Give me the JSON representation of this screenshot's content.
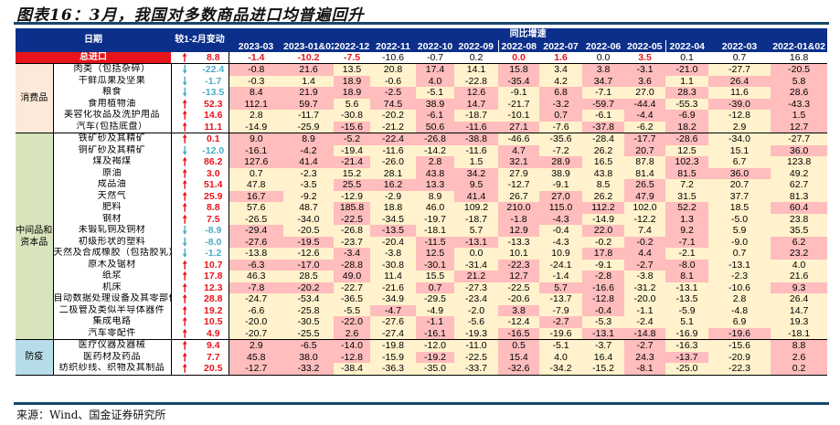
{
  "title": "图表16：3月，我国对多数商品进口均普遍回升",
  "source": "来源：Wind、国金证券研究所",
  "colors": {
    "header_bg": "#0b2f8a",
    "up": "#e8141b",
    "down": "#4bacc6",
    "pink": "#ffbdbd",
    "cream": "#fff2cc",
    "consumer": "#fde9d9",
    "intermediate": "#d8e4bc",
    "epidemic": "#b7dee8"
  },
  "chart_data": {
    "type": "table",
    "title": "图表16：3月，我国对多数商品进口均普遍回升",
    "header": {
      "date_label": "日期",
      "change_label": "较1-2月变动",
      "group_label": "同比增速"
    },
    "columns": [
      "2023-03",
      "2023-01&02",
      "2022-12",
      "2022-11",
      "2022-10",
      "2022-09",
      "2022-08",
      "2022-07",
      "2022-06",
      "2022-05",
      "2022-04",
      "2022-03",
      "2022-01&02"
    ],
    "total": {
      "label": "总进口",
      "change": "8.8",
      "direction": "up",
      "values": [
        "-1.4",
        "-10.2",
        "-7.5",
        "-10.6",
        "-0.7",
        "0.2",
        "0.0",
        "1.6",
        "0.0",
        "3.5",
        "0.1",
        "0.7",
        "16.8"
      ],
      "red": [
        1,
        1,
        1,
        0,
        0,
        0,
        1,
        1,
        0,
        1,
        0,
        0,
        0
      ]
    },
    "groups": [
      {
        "label": "消费品",
        "color": "#fde9d9",
        "rows": [
          {
            "name": "肉类（包括杂碎）",
            "dir": "down",
            "change": "-22.4",
            "values": [
              "-0.8",
              "21.6",
              "13.5",
              "20.8",
              "17.4",
              "14.1",
              "15.8",
              "3.4",
              "3.8",
              "-3.1",
              "-21.0",
              "-27.7",
              "-20.5"
            ],
            "hl": "ppccpcpcpppcp"
          },
          {
            "name": "干鲜瓜果及坚果",
            "dir": "down",
            "change": "-1.7",
            "values": [
              "-0.3",
              "1.4",
              "18.9",
              "-0.6",
              "4.0",
              "-22.8",
              "-35.4",
              "4.2",
              "34.7",
              "3.6",
              "1.1",
              "26.4",
              "5.8"
            ],
            "hl": "ccpcpcpcppcpp"
          },
          {
            "name": "粮食",
            "dir": "down",
            "change": "-13.5",
            "values": [
              "8.4",
              "21.9",
              "18.9",
              "-2.5",
              "-5.1",
              "12.6",
              "-9.1",
              "6.8",
              "-7.1",
              "27.0",
              "28.3",
              "11.6",
              "28.6"
            ],
            "hl": "ppppcpcpccpcp"
          },
          {
            "name": "食用植物油",
            "dir": "up",
            "change": "52.3",
            "values": [
              "112.1",
              "59.7",
              "5.6",
              "74.5",
              "38.9",
              "14.7",
              "-21.7",
              "-3.2",
              "-59.7",
              "-44.4",
              "-55.3",
              "-39.0",
              "-43.3"
            ],
            "hl": "ppcpppcpppcpp"
          },
          {
            "name": "美容化妆品及洗护用品",
            "dir": "up",
            "change": "14.6",
            "values": [
              "2.8",
              "-11.7",
              "-30.8",
              "-20.2",
              "-6.1",
              "-18.7",
              "-10.1",
              "0.7",
              "-6.1",
              "-4.4",
              "-6.9",
              "-12.8",
              "1.5"
            ],
            "hl": "ccccpccpcppcp"
          },
          {
            "name": "汽车(包括底盘）",
            "dir": "up",
            "change": "11.1",
            "values": [
              "-14.9",
              "-25.9",
              "-15.6",
              "-21.2",
              "50.6",
              "-11.6",
              "27.1",
              "-7.6",
              "-37.8",
              "-6.2",
              "18.2",
              "2.9",
              "12.7"
            ],
            "hl": "ccpcpppcpcpcp"
          }
        ]
      },
      {
        "label": "中间品和资本品",
        "color": "#d8e4bc",
        "rows": [
          {
            "name": "铁矿砂及其精矿",
            "dir": "up",
            "change": "0.1",
            "values": [
              "9.0",
              "8.9",
              "-5.2",
              "-22.4",
              "-26.8",
              "-38.8",
              "-46.6",
              "-35.6",
              "-28.4",
              "-17.7",
              "-28.6",
              "-34.0",
              "-27.7"
            ],
            "hl": "ppppppcccppcc"
          },
          {
            "name": "铜矿砂及其精矿",
            "dir": "down",
            "change": "-12.0",
            "values": [
              "-16.1",
              "-4.2",
              "-19.4",
              "-11.6",
              "-14.2",
              "-11.6",
              "4.7",
              "-7.2",
              "26.2",
              "20.7",
              "12.5",
              "15.1",
              "36.0"
            ],
            "hl": "ppccccpccpccp"
          },
          {
            "name": "煤及褐煤",
            "dir": "up",
            "change": "86.2",
            "values": [
              "127.6",
              "41.4",
              "-21.4",
              "-26.0",
              "2.8",
              "1.5",
              "32.1",
              "28.9",
              "16.5",
              "87.8",
              "102.3",
              "6.7",
              "123.8"
            ],
            "hl": "pppcpcppccpcc"
          },
          {
            "name": "原油",
            "dir": "up",
            "change": "3.0",
            "values": [
              "0.7",
              "-2.3",
              "15.2",
              "28.1",
              "43.8",
              "34.2",
              "27.9",
              "38.9",
              "43.8",
              "81.4",
              "81.5",
              "36.0",
              "49.2"
            ],
            "hl": "ccccppccccppc"
          },
          {
            "name": "成品油",
            "dir": "up",
            "change": "51.4",
            "values": [
              "47.8",
              "-3.5",
              "25.5",
              "16.2",
              "13.3",
              "9.5",
              "-12.7",
              "-9.1",
              "8.5",
              "26.5",
              "7.2",
              "20.7",
              "62.7"
            ],
            "hl": "ccppppcccpccc"
          },
          {
            "name": "天然气",
            "dir": "up",
            "change": "25.9",
            "values": [
              "16.7",
              "-9.2",
              "-12.9",
              "-2.9",
              "8.9",
              "41.4",
              "26.7",
              "27.0",
              "26.2",
              "47.9",
              "31.5",
              "37.7",
              "81.3"
            ],
            "hl": "pccccpcpcpccc"
          },
          {
            "name": "肥料",
            "dir": "up",
            "change": "8.8",
            "values": [
              "57.6",
              "48.7",
              "185.8",
              "18.8",
              "46.0",
              "109.2",
              "210.0",
              "115.0",
              "112.2",
              "102.0",
              "52.2",
              "18.5",
              "60.4"
            ],
            "hl": "ccpcccpppcpcp"
          },
          {
            "name": "钢材",
            "dir": "up",
            "change": "7.5",
            "values": [
              "-26.5",
              "-34.0",
              "-22.5",
              "-34.5",
              "-19.7",
              "-18.7",
              "-1.8",
              "-4.3",
              "-14.9",
              "-12.2",
              "1.3",
              "-5.0",
              "23.8"
            ],
            "hl": "ccpcccppccpcc"
          },
          {
            "name": "未锻轧铜及铜材",
            "dir": "down",
            "change": "-8.9",
            "values": [
              "-29.4",
              "-20.5",
              "-26.8",
              "-13.5",
              "-18.1",
              "5.7",
              "12.9",
              "-0.4",
              "22.0",
              "7.4",
              "9.2",
              "5.9",
              "35.5"
            ],
            "hl": "pccpccpcpcpcc"
          },
          {
            "name": "初级形状的塑料",
            "dir": "down",
            "change": "-8.0",
            "values": [
              "-27.6",
              "-19.5",
              "-23.7",
              "-20.4",
              "-11.5",
              "-13.1",
              "-13.3",
              "-4.3",
              "-0.2",
              "-0.2",
              "-7.1",
              "-9.0",
              "6.2"
            ],
            "hl": "ppccppcccppcp"
          },
          {
            "name": "天然及合成橡胶（包括胶乳）",
            "dir": "down",
            "change": "-1.2",
            "values": [
              "-13.8",
              "-12.6",
              "-3.4",
              "-3.8",
              "12.5",
              "0.0",
              "10.1",
              "10.9",
              "17.8",
              "4.4",
              "-2.1",
              "0.7",
              "23.2"
            ],
            "hl": "ccpcpcccppccp"
          },
          {
            "name": "原木及锯材",
            "dir": "up",
            "change": "10.7",
            "values": [
              "-6.3",
              "-17.0",
              "-28.8",
              "-30.8",
              "-30.1",
              "-31.4",
              "-22.3",
              "-24.1",
              "-9.1",
              "-2.7",
              "-8.0",
              "-13.1",
              "4.0"
            ],
            "hl": "pppcpcpccppcc"
          },
          {
            "name": "纸浆",
            "dir": "up",
            "change": "17.8",
            "values": [
              "46.3",
              "28.5",
              "49.0",
              "11.4",
              "15.5",
              "21.2",
              "12.7",
              "-1.4",
              "-2.8",
              "-3.8",
              "8.1",
              "-2.3",
              "21.6"
            ],
            "hl": "ccpccppcpcpcc"
          },
          {
            "name": "机床",
            "dir": "up",
            "change": "12.3",
            "values": [
              "-7.8",
              "-20.2",
              "-22.7",
              "-21.6",
              "0.7",
              "-27.3",
              "-22.5",
              "5.7",
              "-16.6",
              "-31.2",
              "-13.1",
              "-10.6",
              "9.3"
            ],
            "hl": "ppccpccppcccp"
          },
          {
            "name": "自动数据处理设备及其零部件",
            "dir": "up",
            "change": "28.8",
            "values": [
              "-24.7",
              "-53.4",
              "-36.5",
              "-34.9",
              "-29.5",
              "-23.4",
              "-20.6",
              "-13.7",
              "-12.8",
              "-20.0",
              "-13.5",
              "2.8",
              "26.4"
            ],
            "hl": "ccccccccpcccc"
          },
          {
            "name": "二极管及类似半导体器件",
            "dir": "up",
            "change": "19.2",
            "values": [
              "-6.6",
              "-25.8",
              "-5.5",
              "-4.7",
              "-4.9",
              "-2.0",
              "3.8",
              "-7.9",
              "-0.4",
              "-1.1",
              "-5.9",
              "-4.8",
              "14.7"
            ],
            "hl": "cccpccpcpcccc"
          },
          {
            "name": "集成电路",
            "dir": "up",
            "change": "10.5",
            "values": [
              "-20.0",
              "-30.5",
              "-22.0",
              "-27.6",
              "-1.1",
              "-5.6",
              "-12.4",
              "-2.7",
              "-5.3",
              "-2.4",
              "5.1",
              "6.9",
              "19.3"
            ],
            "hl": "ccpcpccpccccc"
          },
          {
            "name": "汽车零配件",
            "dir": "up",
            "change": "4.9",
            "values": [
              "-20.7",
              "-25.5",
              "2.6",
              "-27.4",
              "-16.1",
              "-19.3",
              "-16.5",
              "-19.6",
              "-13.1",
              "-14.8",
              "-16.9",
              "-19.6",
              "-18.1"
            ],
            "hl": "ccpcpcpcppcpc"
          }
        ]
      },
      {
        "label": "防疫",
        "color": "#b7dee8",
        "rows": [
          {
            "name": "医疗仪器及器械",
            "dir": "up",
            "change": "9.4",
            "values": [
              "2.9",
              "-6.5",
              "-14.0",
              "-19.8",
              "-12.0",
              "-11.0",
              "0.5",
              "-5.1",
              "-3.7",
              "-2.7",
              "-16.3",
              "-15.6",
              "8.8"
            ],
            "hl": "pppcccpccpccp"
          },
          {
            "name": "医药材及药品",
            "dir": "up",
            "change": "7.7",
            "values": [
              "45.8",
              "38.0",
              "-12.8",
              "-15.9",
              "-19.2",
              "-22.5",
              "15.4",
              "4.0",
              "16.4",
              "24.3",
              "-13.7",
              "-20.9",
              "2.6"
            ],
            "hl": "pppcpcpccppcp"
          },
          {
            "name": "纺织纱线、织物及其制品",
            "dir": "up",
            "change": "20.5",
            "values": [
              "-12.7",
              "-33.2",
              "-38.4",
              "-36.3",
              "-35.0",
              "-33.7",
              "-32.6",
              "-34.2",
              "-15.2",
              "-8.1",
              "-25.0",
              "-22.3",
              "0.2"
            ],
            "hl": "ppccccpccpccp"
          }
        ]
      }
    ]
  }
}
